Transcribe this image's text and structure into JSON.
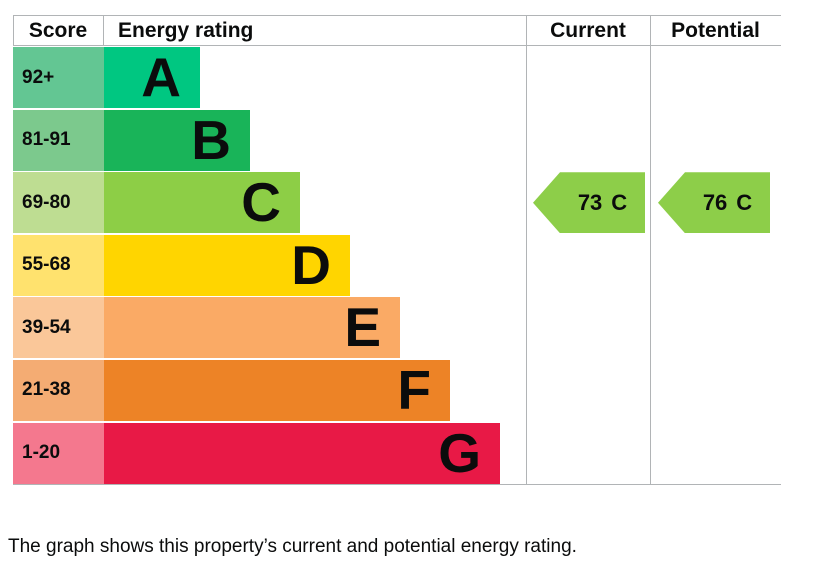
{
  "header": {
    "score": "Score",
    "energy_rating": "Energy rating",
    "current": "Current",
    "potential": "Potential"
  },
  "chart_data": {
    "type": "bar",
    "description": "Energy efficiency rating bands with current and potential rating arrows",
    "bands": [
      {
        "letter": "A",
        "score": "92+",
        "color": "#00c781",
        "score_color": "#63c693"
      },
      {
        "letter": "B",
        "score": "81-91",
        "color": "#19b459",
        "score_color": "#7cc98d"
      },
      {
        "letter": "C",
        "score": "69-80",
        "color": "#8dce46",
        "score_color": "#bedd92"
      },
      {
        "letter": "D",
        "score": "55-68",
        "color": "#ffd500",
        "score_color": "#ffe26e"
      },
      {
        "letter": "E",
        "score": "39-54",
        "color": "#faaa65",
        "score_color": "#fac799"
      },
      {
        "letter": "F",
        "score": "21-38",
        "color": "#ed8326",
        "score_color": "#f4ac73"
      },
      {
        "letter": "G",
        "score": "1-20",
        "color": "#e81946",
        "score_color": "#f4788e"
      }
    ],
    "current": {
      "value": "73",
      "letter": "C",
      "band_index": 2,
      "color": "#8dce49"
    },
    "potential": {
      "value": "76",
      "letter": "C",
      "band_index": 2,
      "color": "#8dce49"
    }
  },
  "caption": "The graph shows this property’s current and potential energy rating."
}
